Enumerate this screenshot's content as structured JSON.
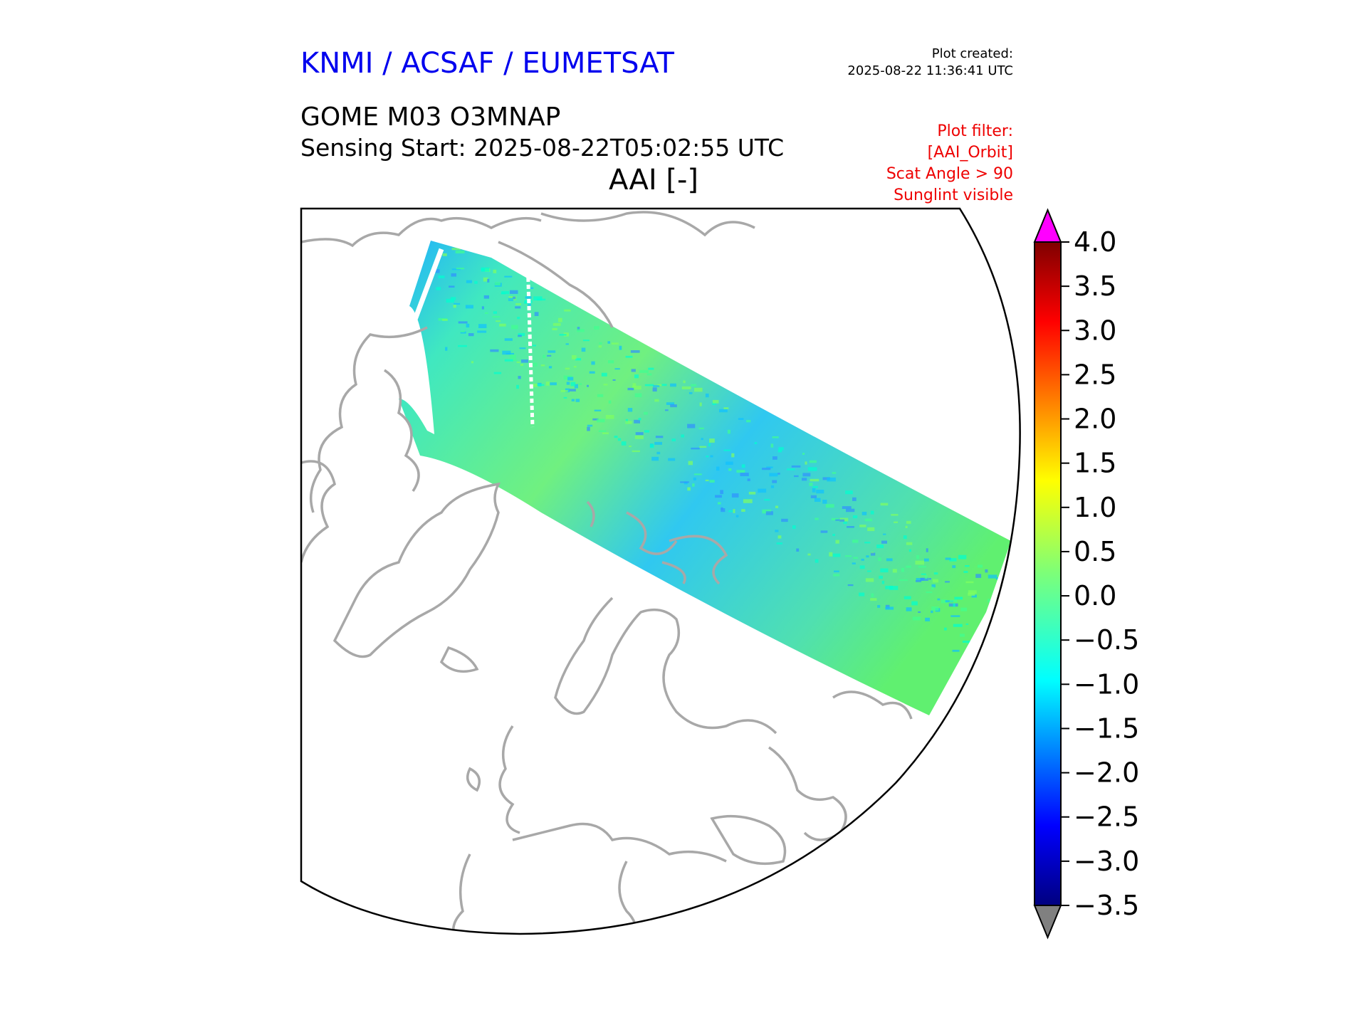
{
  "header": {
    "organization": "KNMI / ACSAF / EUMETSAT",
    "created_label": "Plot created:",
    "created_time": "2025-08-22 11:36:41 UTC",
    "product": "GOME M03 O3MNAP",
    "sensing_start": "Sensing Start: 2025-08-22T05:02:55 UTC",
    "parameter": "AAI [-]"
  },
  "plot_filter": {
    "label": "Plot filter:",
    "lines": [
      "[AAI_Orbit]",
      "Scat Angle > 90",
      "Sunglint visible"
    ]
  },
  "colorbar": {
    "min": -3.5,
    "max": 4.0,
    "ticks": [
      4.0,
      3.5,
      3.0,
      2.5,
      2.0,
      1.5,
      1.0,
      0.5,
      0.0,
      -0.5,
      -1.0,
      -1.5,
      -2.0,
      -2.5,
      -3.0,
      -3.5
    ],
    "tick_labels": [
      "4.0",
      "3.5",
      "3.0",
      "2.5",
      "2.0",
      "1.5",
      "1.0",
      "0.5",
      "0.0",
      "−0.5",
      "−1.0",
      "−1.5",
      "−2.0",
      "−2.5",
      "−3.0",
      "−3.5"
    ],
    "over_color": "#ff00ff",
    "under_color": "#808080",
    "colormap": "jet"
  },
  "map": {
    "coastline_color": "#a8a8a8",
    "projection": "polar-stereographic",
    "swath_colors": [
      "#00ffd0",
      "#40ff90",
      "#10c0ff",
      "#80ff60",
      "#3090ff"
    ]
  }
}
